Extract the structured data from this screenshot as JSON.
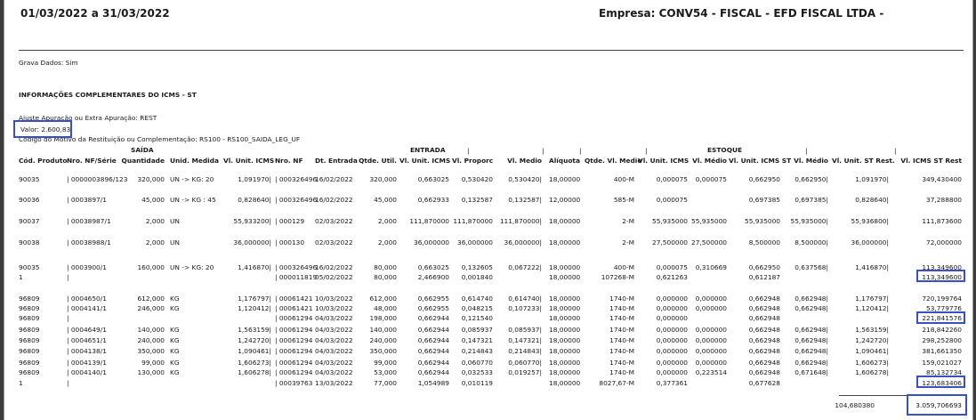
{
  "header": {
    "period": "01/03/2022 a 31/03/2022",
    "company": "Empresa: CONV54 - FISCAL - EFD FISCAL LTDA -"
  },
  "info": {
    "grava": "Grava Dados: Sim",
    "section": "INFORMAÇÕES COMPLEMENTARES DO ICMS - ST",
    "ajuste": "Ajuste Apuração ou Extra Apuração: REST",
    "valor": "Valor: 2.600,83",
    "codigo": "Codigo do Motivo da Restituição ou Complementação: RS100 - RS100_SAIDA_LEG_UF"
  },
  "groups": {
    "saida": "SAÍDA",
    "entrada": "ENTRADA",
    "estoque": "ESTOQUE"
  },
  "columns": [
    "Cód. Produto",
    "Nro. NF/Série",
    "Quantidade",
    "Unid. Medida",
    "Vl. Unit. ICMS",
    "Nro. NF",
    "Dt. Entrada",
    "Qtde. Util.",
    "Vl. Unit. ICMS",
    "Vl. Proporc",
    "Vl. Medio",
    "Alíquota",
    "Qtde. Vl. Medio",
    "Vl. Unit. ICMS",
    "Vl. Médio",
    "Vl. Unit. ICMS ST",
    "Vl. Médio",
    "Vl. Unit. ST Rest.",
    "Vl. ICMS ST Rest"
  ],
  "rows": [
    [
      "90035",
      "| 0000003896/123",
      "320,000",
      "UN -> KG: 20",
      "1,091970",
      "000326496",
      "16/02/2022",
      "320,000",
      "0,663025",
      "0,530420",
      "0,530420",
      "18,00000",
      "400-M",
      "0,000075",
      "0,000075",
      "0,662950",
      "0,662950",
      "1,091970",
      "349,430400"
    ],
    [
      "90036",
      "| 0003897/1",
      "45,000",
      "UN -> KG : 45",
      "0,828640",
      "000326496",
      "16/02/2022",
      "45,000",
      "0,662933",
      "0,132587",
      "0,132587",
      "12,00000",
      "585-M",
      "0,000075",
      "",
      "0,697385",
      "0,697385",
      "0,828640",
      "37,288800"
    ],
    [
      "90037",
      "| 00038987/1",
      "2,000",
      "UN",
      "55,933200",
      "000129",
      "02/03/2022",
      "2,000",
      "111,870000",
      "111,870000",
      "111,870000",
      "18,00000",
      "2-M",
      "55,935000",
      "55,935000",
      "55,935000",
      "55,935000",
      "55,936800",
      "111,873600"
    ],
    [
      "90038",
      "| 00038988/1",
      "2,000",
      "UN",
      "36,000000",
      "000130",
      "02/03/2022",
      "2,000",
      "36,000000",
      "36,000000",
      "36,000000",
      "18,00000",
      "2-M",
      "27,500000",
      "27,500000",
      "8,500000",
      "8,500000",
      "36,000000",
      "72,000000"
    ],
    [
      "90035",
      "| 0003900/1",
      "160,000",
      "UN -> KG: 20",
      "1,416870",
      "000326496",
      "16/02/2022",
      "80,000",
      "0,663025",
      "0,132605",
      "0,067222",
      "18,00000",
      "400-M",
      "0,000075",
      "0,310669",
      "0,662950",
      "0,637568",
      "1,416870",
      "113,349600"
    ],
    [
      "1",
      "|",
      "",
      "",
      "",
      "000011819",
      "05/02/2022",
      "80,000",
      "2,466900",
      "0,001840",
      "",
      "18,00000",
      "107268-M",
      "0,621263",
      "",
      "0,612187",
      "",
      "",
      "113,349600"
    ],
    [
      "96809",
      "| 0004650/1",
      "612,000",
      "KG",
      "1,176797",
      "00061421",
      "10/03/2022",
      "612,000",
      "0,662955",
      "0,614740",
      "0,614740",
      "18,00000",
      "1740-M",
      "0,000000",
      "0,000000",
      "0,662948",
      "0,662948",
      "1,176797",
      "720,199764"
    ],
    [
      "96809",
      "| 0004141/1",
      "246,000",
      "KG",
      "1,120412",
      "00061421",
      "10/03/2022",
      "48,000",
      "0,662955",
      "0,048215",
      "0,107233",
      "18,00000",
      "1740-M",
      "0,000000",
      "0,000000",
      "0,662948",
      "0,662948",
      "1,120412",
      "53,779776"
    ],
    [
      "96809",
      "|",
      "",
      "",
      "",
      "00061294",
      "04/03/2022",
      "198,000",
      "0,662944",
      "0,121540",
      "",
      "18,00000",
      "1740-M",
      "0,000000",
      "",
      "0,662948",
      "",
      "",
      "221,841576"
    ],
    [
      "96809",
      "| 0004649/1",
      "140,000",
      "KG",
      "1,563159",
      "00061294",
      "04/03/2022",
      "140,000",
      "0,662944",
      "0,085937",
      "0,085937",
      "18,00000",
      "1740-M",
      "0,000000",
      "0,000000",
      "0,662948",
      "0,662948",
      "1,563159",
      "218,842260"
    ],
    [
      "96809",
      "| 0004651/1",
      "240,000",
      "KG",
      "1,242720",
      "00061294",
      "04/03/2022",
      "240,000",
      "0,662944",
      "0,147321",
      "0,147321",
      "18,00000",
      "1740-M",
      "0,000000",
      "0,000000",
      "0,662948",
      "0,662948",
      "1,242720",
      "298,252800"
    ],
    [
      "96809",
      "| 0004138/1",
      "350,000",
      "KG",
      "1,090461",
      "00061294",
      "04/03/2022",
      "350,000",
      "0,662944",
      "0,214843",
      "0,214843",
      "18,00000",
      "1740-M",
      "0,000000",
      "0,000000",
      "0,662948",
      "0,662948",
      "1,090461",
      "381,661350"
    ],
    [
      "96809",
      "| 0004139/1",
      "99,000",
      "KG",
      "1,606273",
      "00061294",
      "04/03/2022",
      "99,000",
      "0,662944",
      "0,060770",
      "0,060770",
      "18,00000",
      "1740-M",
      "0,000000",
      "0,000000",
      "0,662948",
      "0,662948",
      "1,606273",
      "159,021027"
    ],
    [
      "96809",
      "| 0004140/1",
      "130,000",
      "KG",
      "1,606278",
      "00061294",
      "04/03/2022",
      "53,000",
      "0,662944",
      "0,032533",
      "0,019257",
      "18,00000",
      "1740-M",
      "0,000000",
      "0,223514",
      "0,662948",
      "0,671648",
      "1,606278",
      "85,132734"
    ],
    [
      "1",
      "|",
      "",
      "",
      "",
      "00039763",
      "13/03/2022",
      "77,000",
      "1,054989",
      "0,010119",
      "",
      "18,00000",
      "8027,67-M",
      "0,377361",
      "",
      "0,677628",
      "",
      "",
      "123,683406"
    ]
  ],
  "totals": {
    "stock": "104,680380",
    "rest": "3.059,706693"
  }
}
